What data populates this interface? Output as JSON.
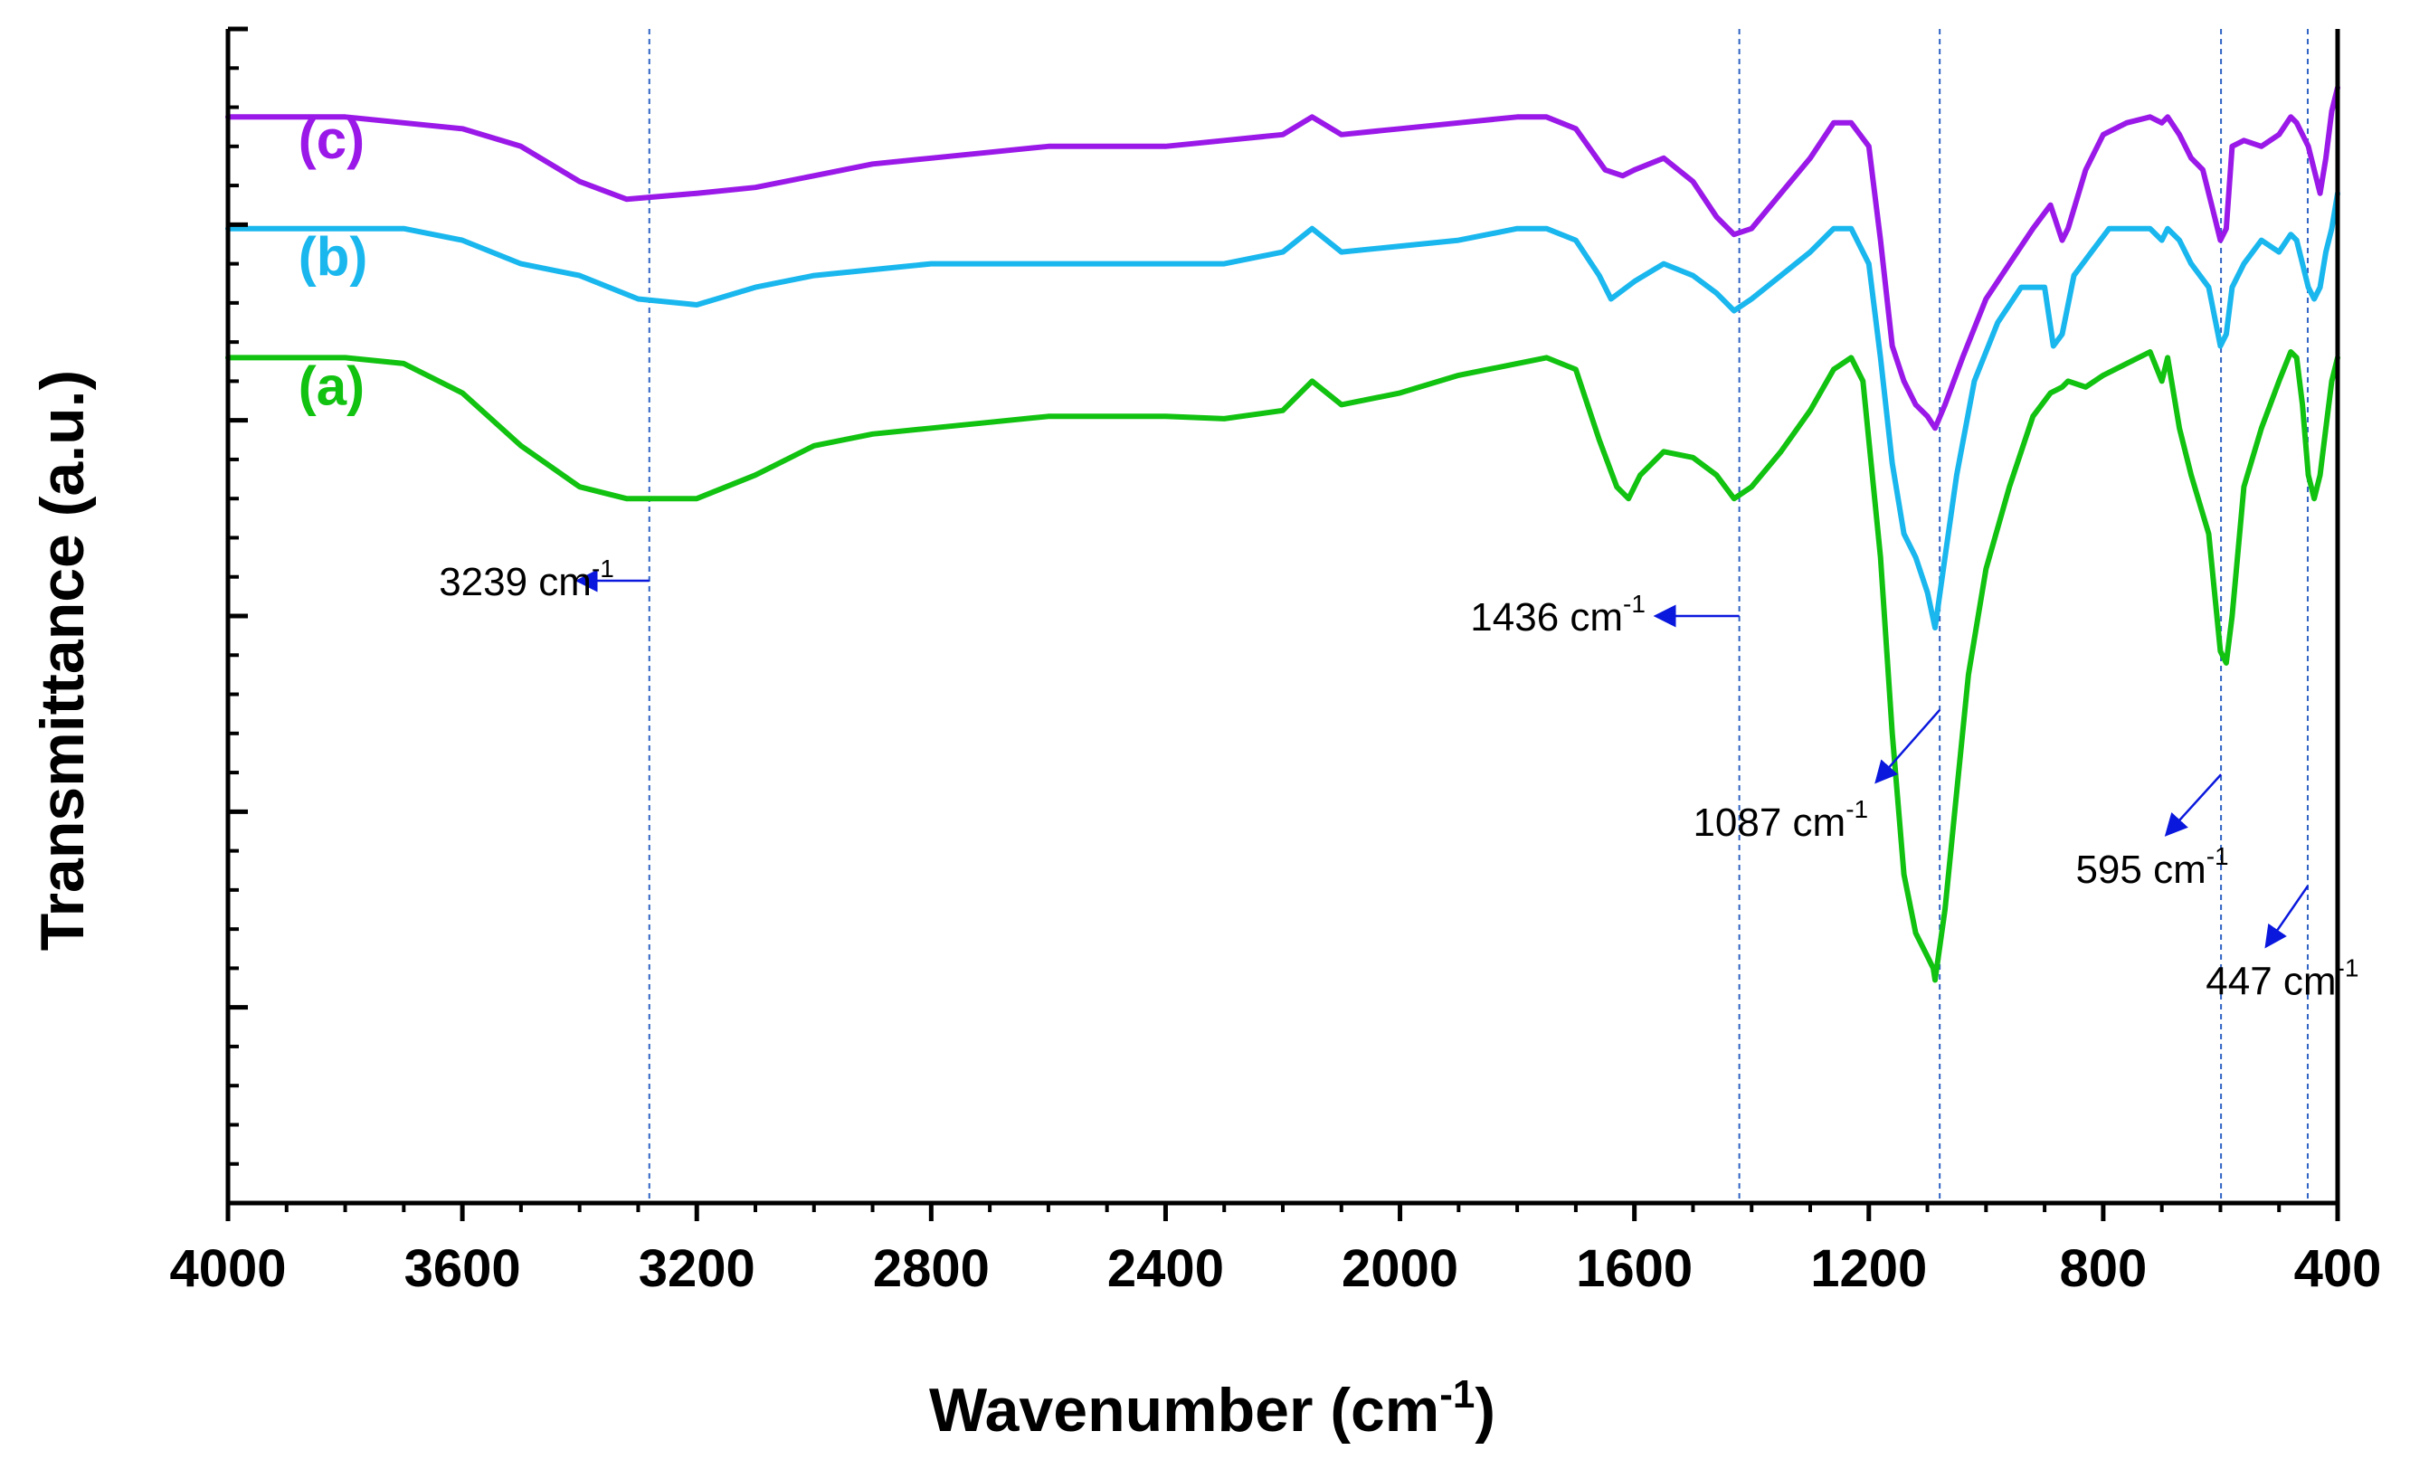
{
  "chart_data": {
    "type": "line",
    "title": "",
    "xlabel": "Wavenumber (cm",
    "xlabel_sup": "-1",
    "xlabel_close": ")",
    "ylabel": "Transmittance (a.u.)",
    "xlim": [
      4000,
      400
    ],
    "ylim": [
      0,
      1
    ],
    "x_ticks": [
      4000,
      3600,
      3200,
      2800,
      2400,
      2000,
      1600,
      1200,
      800,
      400
    ],
    "x_tick_labels": [
      "4000",
      "3600",
      "3200",
      "2800",
      "2400",
      "2000",
      "1600",
      "1200",
      "800",
      "400"
    ],
    "y_tick_labels_shown": false,
    "colors": {
      "a": "#11c211",
      "b": "#19b7ee",
      "c": "#9a19e8",
      "guide": "#2f63c4",
      "arrow": "#0a18dd"
    },
    "series": [
      {
        "id": "a",
        "name": "(a)",
        "color": "#11c211",
        "points": [
          [
            4000,
            0.72
          ],
          [
            3900,
            0.72
          ],
          [
            3800,
            0.72
          ],
          [
            3700,
            0.715
          ],
          [
            3600,
            0.69
          ],
          [
            3500,
            0.645
          ],
          [
            3400,
            0.61
          ],
          [
            3320,
            0.6
          ],
          [
            3200,
            0.6
          ],
          [
            3100,
            0.62
          ],
          [
            3000,
            0.645
          ],
          [
            2900,
            0.655
          ],
          [
            2800,
            0.66
          ],
          [
            2700,
            0.665
          ],
          [
            2600,
            0.67
          ],
          [
            2500,
            0.67
          ],
          [
            2400,
            0.67
          ],
          [
            2300,
            0.668
          ],
          [
            2200,
            0.675
          ],
          [
            2150,
            0.7
          ],
          [
            2100,
            0.68
          ],
          [
            2000,
            0.69
          ],
          [
            1900,
            0.705
          ],
          [
            1800,
            0.715
          ],
          [
            1750,
            0.72
          ],
          [
            1700,
            0.71
          ],
          [
            1660,
            0.65
          ],
          [
            1630,
            0.61
          ],
          [
            1610,
            0.6
          ],
          [
            1590,
            0.62
          ],
          [
            1550,
            0.64
          ],
          [
            1500,
            0.635
          ],
          [
            1460,
            0.62
          ],
          [
            1430,
            0.6
          ],
          [
            1400,
            0.61
          ],
          [
            1350,
            0.64
          ],
          [
            1300,
            0.675
          ],
          [
            1260,
            0.71
          ],
          [
            1230,
            0.72
          ],
          [
            1210,
            0.7
          ],
          [
            1180,
            0.55
          ],
          [
            1160,
            0.4
          ],
          [
            1140,
            0.28
          ],
          [
            1120,
            0.23
          ],
          [
            1100,
            0.21
          ],
          [
            1090,
            0.2
          ],
          [
            1087,
            0.19
          ],
          [
            1070,
            0.25
          ],
          [
            1050,
            0.35
          ],
          [
            1030,
            0.45
          ],
          [
            1000,
            0.54
          ],
          [
            960,
            0.61
          ],
          [
            920,
            0.67
          ],
          [
            890,
            0.69
          ],
          [
            870,
            0.695
          ],
          [
            860,
            0.7
          ],
          [
            830,
            0.695
          ],
          [
            800,
            0.705
          ],
          [
            760,
            0.715
          ],
          [
            720,
            0.725
          ],
          [
            700,
            0.7
          ],
          [
            690,
            0.72
          ],
          [
            670,
            0.66
          ],
          [
            650,
            0.62
          ],
          [
            620,
            0.57
          ],
          [
            600,
            0.47
          ],
          [
            590,
            0.46
          ],
          [
            580,
            0.5
          ],
          [
            560,
            0.61
          ],
          [
            530,
            0.66
          ],
          [
            500,
            0.7
          ],
          [
            480,
            0.725
          ],
          [
            470,
            0.72
          ],
          [
            460,
            0.68
          ],
          [
            450,
            0.62
          ],
          [
            440,
            0.6
          ],
          [
            430,
            0.62
          ],
          [
            420,
            0.66
          ],
          [
            410,
            0.7
          ],
          [
            400,
            0.72
          ]
        ]
      },
      {
        "id": "b",
        "name": "(b)",
        "color": "#19b7ee",
        "points": [
          [
            4000,
            0.83
          ],
          [
            3900,
            0.83
          ],
          [
            3800,
            0.83
          ],
          [
            3700,
            0.83
          ],
          [
            3600,
            0.82
          ],
          [
            3500,
            0.8
          ],
          [
            3400,
            0.79
          ],
          [
            3300,
            0.77
          ],
          [
            3200,
            0.765
          ],
          [
            3100,
            0.78
          ],
          [
            3000,
            0.79
          ],
          [
            2900,
            0.795
          ],
          [
            2800,
            0.8
          ],
          [
            2700,
            0.8
          ],
          [
            2600,
            0.8
          ],
          [
            2500,
            0.8
          ],
          [
            2400,
            0.8
          ],
          [
            2300,
            0.8
          ],
          [
            2200,
            0.81
          ],
          [
            2150,
            0.83
          ],
          [
            2100,
            0.81
          ],
          [
            2000,
            0.815
          ],
          [
            1900,
            0.82
          ],
          [
            1800,
            0.83
          ],
          [
            1750,
            0.83
          ],
          [
            1700,
            0.82
          ],
          [
            1660,
            0.79
          ],
          [
            1640,
            0.77
          ],
          [
            1600,
            0.785
          ],
          [
            1550,
            0.8
          ],
          [
            1500,
            0.79
          ],
          [
            1460,
            0.775
          ],
          [
            1430,
            0.76
          ],
          [
            1400,
            0.77
          ],
          [
            1350,
            0.79
          ],
          [
            1300,
            0.81
          ],
          [
            1260,
            0.83
          ],
          [
            1230,
            0.83
          ],
          [
            1200,
            0.8
          ],
          [
            1180,
            0.72
          ],
          [
            1160,
            0.63
          ],
          [
            1140,
            0.57
          ],
          [
            1120,
            0.55
          ],
          [
            1100,
            0.52
          ],
          [
            1087,
            0.49
          ],
          [
            1070,
            0.55
          ],
          [
            1050,
            0.62
          ],
          [
            1020,
            0.7
          ],
          [
            980,
            0.75
          ],
          [
            940,
            0.78
          ],
          [
            900,
            0.78
          ],
          [
            885,
            0.73
          ],
          [
            870,
            0.74
          ],
          [
            850,
            0.79
          ],
          [
            820,
            0.81
          ],
          [
            790,
            0.83
          ],
          [
            760,
            0.83
          ],
          [
            720,
            0.83
          ],
          [
            700,
            0.82
          ],
          [
            690,
            0.83
          ],
          [
            670,
            0.82
          ],
          [
            650,
            0.8
          ],
          [
            620,
            0.78
          ],
          [
            600,
            0.73
          ],
          [
            590,
            0.74
          ],
          [
            580,
            0.78
          ],
          [
            560,
            0.8
          ],
          [
            530,
            0.82
          ],
          [
            500,
            0.81
          ],
          [
            480,
            0.825
          ],
          [
            470,
            0.82
          ],
          [
            450,
            0.78
          ],
          [
            440,
            0.77
          ],
          [
            430,
            0.78
          ],
          [
            420,
            0.81
          ],
          [
            410,
            0.83
          ],
          [
            400,
            0.86
          ]
        ]
      },
      {
        "id": "c",
        "name": "(c)",
        "color": "#9a19e8",
        "points": [
          [
            4000,
            0.925
          ],
          [
            3900,
            0.925
          ],
          [
            3800,
            0.925
          ],
          [
            3700,
            0.92
          ],
          [
            3600,
            0.915
          ],
          [
            3500,
            0.9
          ],
          [
            3400,
            0.87
          ],
          [
            3320,
            0.855
          ],
          [
            3200,
            0.86
          ],
          [
            3100,
            0.865
          ],
          [
            3000,
            0.875
          ],
          [
            2900,
            0.885
          ],
          [
            2800,
            0.89
          ],
          [
            2700,
            0.895
          ],
          [
            2600,
            0.9
          ],
          [
            2500,
            0.9
          ],
          [
            2400,
            0.9
          ],
          [
            2300,
            0.905
          ],
          [
            2200,
            0.91
          ],
          [
            2150,
            0.925
          ],
          [
            2100,
            0.91
          ],
          [
            2000,
            0.915
          ],
          [
            1900,
            0.92
          ],
          [
            1800,
            0.925
          ],
          [
            1750,
            0.925
          ],
          [
            1700,
            0.915
          ],
          [
            1650,
            0.88
          ],
          [
            1620,
            0.875
          ],
          [
            1600,
            0.88
          ],
          [
            1550,
            0.89
          ],
          [
            1500,
            0.87
          ],
          [
            1460,
            0.84
          ],
          [
            1430,
            0.825
          ],
          [
            1400,
            0.83
          ],
          [
            1350,
            0.86
          ],
          [
            1300,
            0.89
          ],
          [
            1260,
            0.92
          ],
          [
            1230,
            0.92
          ],
          [
            1200,
            0.9
          ],
          [
            1180,
            0.82
          ],
          [
            1160,
            0.73
          ],
          [
            1140,
            0.7
          ],
          [
            1120,
            0.68
          ],
          [
            1100,
            0.67
          ],
          [
            1087,
            0.66
          ],
          [
            1070,
            0.68
          ],
          [
            1040,
            0.72
          ],
          [
            1000,
            0.77
          ],
          [
            960,
            0.8
          ],
          [
            920,
            0.83
          ],
          [
            890,
            0.85
          ],
          [
            870,
            0.82
          ],
          [
            860,
            0.83
          ],
          [
            830,
            0.88
          ],
          [
            800,
            0.91
          ],
          [
            760,
            0.92
          ],
          [
            720,
            0.925
          ],
          [
            700,
            0.92
          ],
          [
            690,
            0.925
          ],
          [
            670,
            0.91
          ],
          [
            650,
            0.89
          ],
          [
            630,
            0.88
          ],
          [
            610,
            0.84
          ],
          [
            600,
            0.82
          ],
          [
            590,
            0.83
          ],
          [
            580,
            0.9
          ],
          [
            560,
            0.905
          ],
          [
            530,
            0.9
          ],
          [
            500,
            0.91
          ],
          [
            480,
            0.925
          ],
          [
            470,
            0.92
          ],
          [
            450,
            0.9
          ],
          [
            440,
            0.88
          ],
          [
            430,
            0.86
          ],
          [
            420,
            0.89
          ],
          [
            410,
            0.93
          ],
          [
            400,
            0.95
          ]
        ]
      }
    ],
    "series_labels": [
      {
        "id": "c",
        "text": "(c)",
        "x": 3880,
        "y": 0.89
      },
      {
        "id": "b",
        "text": "(b)",
        "x": 3880,
        "y": 0.79
      },
      {
        "id": "a",
        "text": "(a)",
        "x": 3880,
        "y": 0.68
      }
    ],
    "guide_lines": [
      3281,
      1421,
      1079,
      599,
      451
    ],
    "annotations": [
      {
        "text": "3239 cm",
        "sup": "-1",
        "line_x": 3281,
        "line_y": 0.53,
        "arrow_to_x": 3400,
        "arrow_to_y": 0.53,
        "label_x": 3640,
        "label_y": 0.53,
        "anchor": "start"
      },
      {
        "text": "1436 cm",
        "sup": "-1",
        "line_x": 1421,
        "line_y": 0.5,
        "arrow_to_x": 1560,
        "arrow_to_y": 0.5,
        "label_x": 1880,
        "label_y": 0.5,
        "anchor": "start"
      },
      {
        "text": "1087 cm",
        "sup": "-1",
        "line_x": 1079,
        "line_y": 0.42,
        "arrow_to_x": 1185,
        "arrow_to_y": 0.36,
        "label_x": 1500,
        "label_y": 0.325,
        "anchor": "start"
      },
      {
        "text": "595 cm",
        "sup": "-1",
        "line_x": 599,
        "line_y": 0.365,
        "arrow_to_x": 690,
        "arrow_to_y": 0.315,
        "label_x": 847,
        "label_y": 0.285,
        "anchor": "start"
      },
      {
        "text": "447 cm",
        "sup": "-1",
        "line_x": 451,
        "line_y": 0.27,
        "arrow_to_x": 520,
        "arrow_to_y": 0.22,
        "label_x": 625,
        "label_y": 0.19,
        "anchor": "start"
      }
    ]
  }
}
